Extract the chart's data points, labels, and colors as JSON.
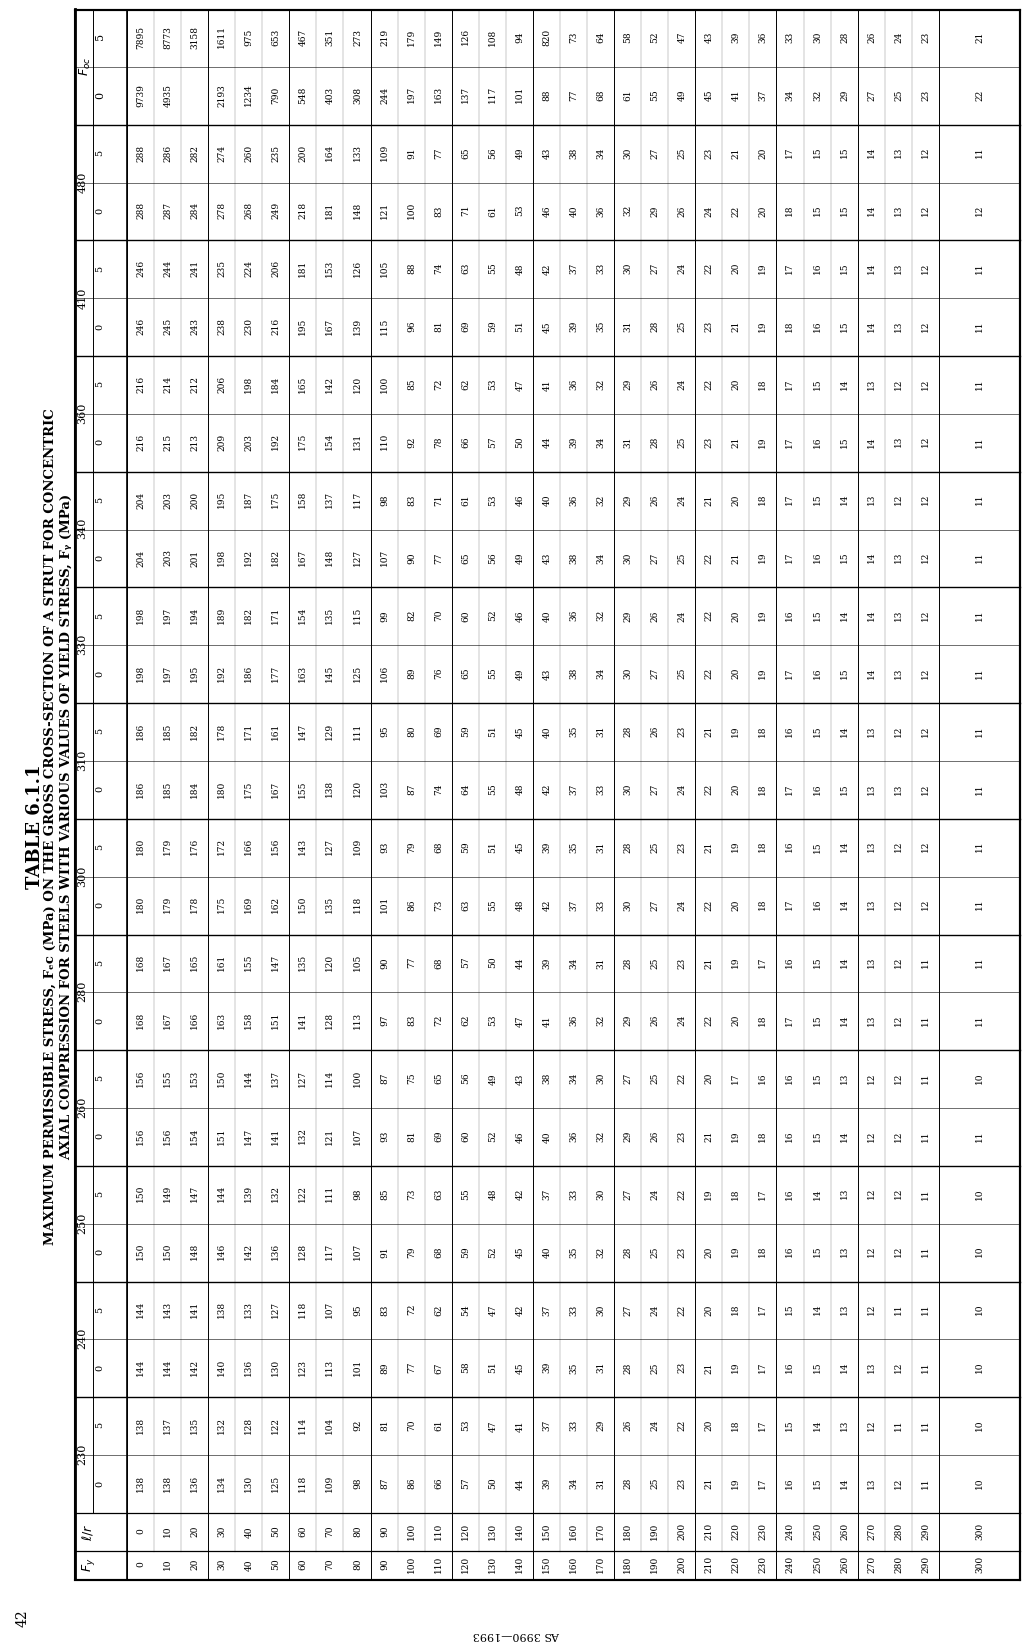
{
  "title1": "TABLE 6.1.1",
  "title2": "MAXIMUM PERMISSIBLE STRESS, Fₑc (MPa) ON THE GROSS CROSS-SECTION OF A STRUT FOR CONCENTRIC",
  "title3": "AXIAL COMPRESSION FOR STEELS WITH VARIOUS VALUES OF YIELD STRESS, Fᵧ (MPa)",
  "page_num": "42",
  "side_text": "AS 3990—1993",
  "fy_cols": [
    230,
    240,
    250,
    260,
    280,
    300,
    310,
    330,
    340,
    360,
    410,
    480
  ],
  "le_r_rows": [
    [
      "0",
      "10",
      "20"
    ],
    [
      "30",
      "40",
      "50"
    ],
    [
      "60",
      "70",
      "80"
    ],
    [
      "90",
      "100",
      "110"
    ],
    [
      "120",
      "130",
      "140"
    ],
    [
      "150",
      "160",
      "170"
    ],
    [
      "180",
      "190",
      "200"
    ],
    [
      "210",
      "220",
      "230"
    ],
    [
      "240",
      "250",
      "260"
    ],
    [
      "270",
      "280",
      "290"
    ],
    [
      "300"
    ]
  ],
  "col_data": {
    "Foc_0": [
      "9739\n4935\n",
      "2193\n1234\n790",
      "548\n403\n308",
      "244\n197\n163",
      "137\n117\n101",
      "88\n77\n68",
      "61\n55\n49",
      "45\n41\n37",
      "34\n32\n29",
      "27\n25\n23",
      "22"
    ],
    "Foc_5": [
      "7895\n8773\n3158",
      "1611\n975\n653",
      "467\n351\n273",
      "219\n179\n149",
      "126\n108\n94",
      "820\n73\n64",
      "58\n52\n47",
      "43\n39\n36",
      "33\n30\n28",
      "26\n24\n23",
      "21"
    ],
    "230_0": [
      "138\n138\n136",
      "134\n130\n125",
      "118\n109\n98",
      "87\n86\n66",
      "57\n50\n44",
      "39\n34\n31",
      "28\n25\n23",
      "21\n19\n17",
      "16\n15\n14",
      "13\n12\n11",
      "10"
    ],
    "230_5": [
      "138\n137\n135",
      "132\n128\n122",
      "114\n104\n92",
      "81\n70\n61",
      "53\n47\n41",
      "37\n33\n29",
      "26\n24\n22",
      "20\n18\n17",
      "15\n14\n13",
      "12\n11\n11",
      "10"
    ],
    "240_0": [
      "144\n144\n142",
      "140\n136\n130",
      "123\n113\n101",
      "89\n77\n67",
      "58\n51\n45",
      "39\n35\n31",
      "28\n25\n23",
      "21\n19\n17",
      "16\n15\n14",
      "13\n12\n11",
      "10"
    ],
    "240_5": [
      "144\n143\n141",
      "138\n133\n127",
      "118\n107\n95",
      "83\n72\n62",
      "54\n47\n42",
      "37\n33\n30",
      "27\n24\n22",
      "20\n18\n17",
      "15\n14\n13",
      "12\n11\n11",
      "10"
    ],
    "250_0": [
      "150\n150\n148",
      "146\n142\n136",
      "128\n117\n107",
      "91\n79\n68",
      "59\n52\n45",
      "40\n35\n32",
      "28\n25\n23",
      "20\n19\n18",
      "16\n15\n13",
      "12\n12\n11",
      "10"
    ],
    "250_5": [
      "150\n149\n147",
      "144\n139\n132",
      "122\n111\n98",
      "85\n73\n63",
      "55\n48\n42",
      "37\n33\n30",
      "27\n24\n22",
      "19\n18\n17",
      "16\n14\n13",
      "12\n12\n11",
      "10"
    ],
    "260_0": [
      "156\n156\n154",
      "151\n147\n141",
      "132\n121\n107",
      "93\n81\n69",
      "60\n52\n46",
      "40\n36\n32",
      "29\n26\n23",
      "21\n19\n18",
      "16\n15\n14",
      "12\n12\n11",
      "11"
    ],
    "260_5": [
      "156\n155\n153",
      "150\n144\n137",
      "127\n114\n100",
      "87\n75\n65",
      "56\n49\n43",
      "38\n34\n30",
      "27\n25\n22",
      "20\n17\n16",
      "16\n15\n13",
      "12\n12\n11",
      "10"
    ],
    "280_0": [
      "168\n167\n166",
      "163\n158\n151",
      "141\n128\n113",
      "97\n83\n72",
      "62\n53\n47",
      "41\n36\n32",
      "29\n26\n24",
      "22\n20\n18",
      "17\n15\n14",
      "13\n12\n11",
      "11"
    ],
    "280_5": [
      "168\n167\n165",
      "161\n155\n147",
      "135\n120\n105",
      "90\n77\n68",
      "57\n50\n44",
      "39\n34\n31",
      "28\n25\n23",
      "21\n19\n17",
      "16\n15\n14",
      "13\n12\n11",
      "11"
    ],
    "300_0": [
      "180\n179\n178",
      "175\n169\n162",
      "150\n135\n118",
      "101\n86\n73",
      "63\n55\n48",
      "42\n37\n33",
      "30\n27\n24",
      "22\n20\n18",
      "17\n16\n14",
      "13\n12\n12",
      "11"
    ],
    "300_5": [
      "180\n179\n176",
      "172\n166\n156",
      "143\n127\n109",
      "93\n79\n68",
      "59\n51\n45",
      "39\n35\n31",
      "28\n25\n23",
      "21\n19\n18",
      "16\n15\n14",
      "13\n12\n12",
      "11"
    ],
    "310_0": [
      "186\n185\n184",
      "180\n175\n167",
      "155\n138\n120",
      "103\n87\n74",
      "64\n55\n48",
      "42\n37\n33",
      "30\n27\n24",
      "22\n20\n18",
      "17\n16\n15",
      "13\n13\n12",
      "11"
    ],
    "310_5": [
      "186\n185\n182",
      "178\n171\n161",
      "147\n129\n111",
      "95\n80\n69",
      "59\n51\n45",
      "40\n35\n31",
      "28\n26\n23",
      "21\n19\n18",
      "16\n15\n14",
      "13\n12\n12",
      "11"
    ],
    "330_0": [
      "198\n197\n195",
      "192\n186\n177",
      "163\n145\n125",
      "106\n89\n76",
      "65\n55\n49",
      "43\n38\n34",
      "30\n27\n25",
      "22\n20\n19",
      "17\n16\n15",
      "14\n13\n12",
      "11"
    ],
    "330_5": [
      "198\n197\n194",
      "189\n182\n171",
      "154\n135\n115",
      "99\n82\n70",
      "60\n52\n46",
      "40\n36\n32",
      "29\n26\n24",
      "22\n20\n19",
      "16\n15\n14",
      "14\n13\n12",
      "11"
    ],
    "340_0": [
      "204\n203\n201",
      "198\n192\n182",
      "167\n148\n127",
      "107\n90\n77",
      "65\n56\n49",
      "43\n38\n34",
      "30\n27\n25",
      "22\n21\n19",
      "17\n16\n15",
      "14\n13\n12",
      "11"
    ],
    "340_5": [
      "204\n203\n200",
      "195\n187\n175",
      "158\n137\n117",
      "98\n83\n71",
      "61\n53\n46",
      "40\n36\n32",
      "29\n26\n24",
      "21\n20\n18",
      "17\n15\n14",
      "13\n12\n12",
      "11"
    ],
    "360_0": [
      "216\n215\n213",
      "209\n203\n192",
      "175\n154\n131",
      "110\n92\n78",
      "66\n57\n50",
      "44\n39\n34",
      "31\n28\n25",
      "23\n21\n19",
      "17\n16\n15",
      "14\n13\n12",
      "11"
    ],
    "360_5": [
      "216\n214\n212",
      "206\n198\n184",
      "165\n142\n120",
      "100\n85\n72",
      "62\n53\n47",
      "41\n36\n32",
      "29\n26\n24",
      "22\n20\n18",
      "17\n15\n14",
      "13\n12\n12",
      "11"
    ],
    "410_0": [
      "246\n245\n243",
      "238\n230\n216",
      "195\n167\n139",
      "115\n96\n81",
      "69\n59\n51",
      "45\n39\n35",
      "31\n28\n25",
      "23\n21\n19",
      "18\n16\n15",
      "14\n13\n12",
      "11"
    ],
    "410_5": [
      "246\n244\n241",
      "235\n224\n206",
      "181\n153\n126",
      "105\n88\n74",
      "63\n55\n48",
      "42\n37\n33",
      "30\n27\n24",
      "22\n20\n19",
      "17\n16\n15",
      "14\n13\n12",
      "11"
    ],
    "480_0": [
      "288\n287\n284",
      "278\n268\n249",
      "218\n181\n148",
      "121\n100\n83",
      "71\n61\n53",
      "46\n40\n36",
      "32\n29\n26",
      "24\n22\n20",
      "18\n15\n15",
      "14\n13\n12",
      "12"
    ],
    "480_5": [
      "288\n286\n282",
      "274\n260\n235",
      "200\n164\n133",
      "109\n91\n77",
      "65\n56\n49",
      "43\n38\n34",
      "30\n27\n25",
      "23\n21\n20",
      "17\n15\n15",
      "14\n13\n12",
      "11"
    ]
  }
}
